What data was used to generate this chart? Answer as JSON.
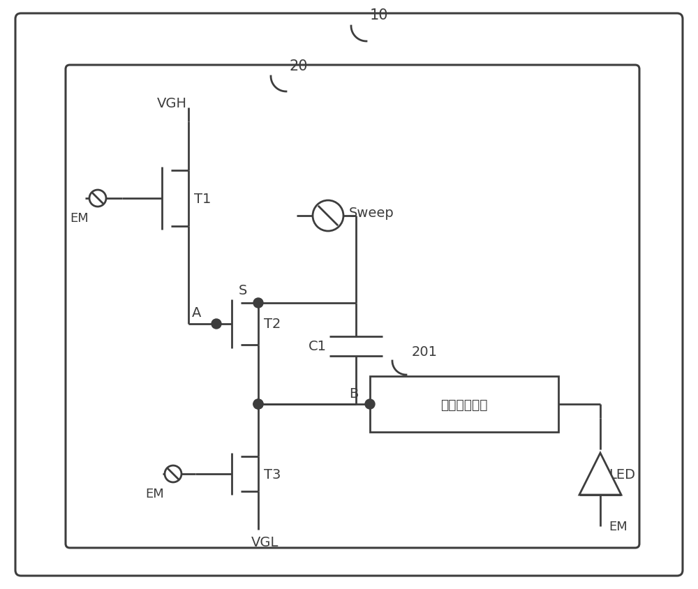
{
  "bg": "#ffffff",
  "lc": "#3d3d3d",
  "lw": 2.0,
  "label_10": "10",
  "label_20": "20",
  "label_201": "201",
  "label_VGH": "VGH",
  "label_VGL": "VGL",
  "label_T1": "T1",
  "label_T2": "T2",
  "label_T3": "T3",
  "label_EM": "EM",
  "label_Sweep": "Sweep",
  "label_C1": "C1",
  "label_S": "S",
  "label_A": "A",
  "label_B": "B",
  "label_LED": "LED",
  "label_box": "发光控制电路"
}
